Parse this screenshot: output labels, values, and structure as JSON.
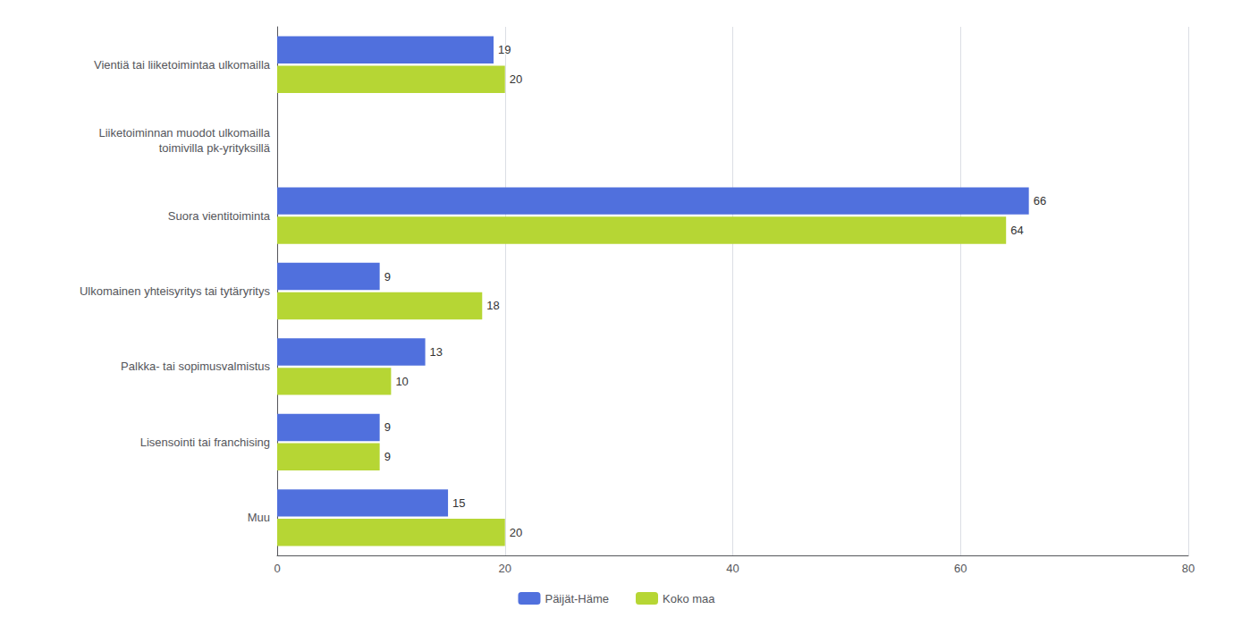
{
  "chart_data": {
    "type": "bar",
    "orientation": "horizontal",
    "categories": [
      "Vientiä tai liiketoimintaa ulkomailla",
      "Liiketoiminnan muodot ulkomailla\ntoimivilla pk-yrityksillä",
      "Suora vientitoiminta",
      "Ulkomainen yhteisyritys tai tytäryritys",
      "Palkka- tai sopimusvalmistus",
      "Lisensointi tai franchising",
      "Muu"
    ],
    "series": [
      {
        "name": "Päijät-Häme",
        "values": [
          19,
          null,
          66,
          9,
          13,
          9,
          15
        ]
      },
      {
        "name": "Koko maa",
        "values": [
          20,
          null,
          64,
          18,
          10,
          9,
          20
        ]
      }
    ],
    "xlim": [
      0,
      80
    ],
    "xticks": [
      0,
      20,
      40,
      60,
      80
    ],
    "grid": true,
    "data_labels": true,
    "legend": "bottom"
  }
}
